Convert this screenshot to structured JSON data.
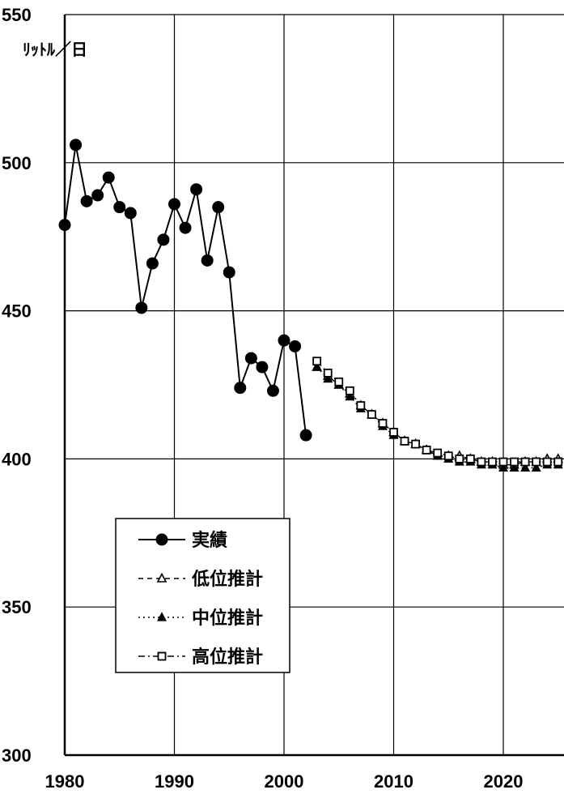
{
  "chart_data": {
    "type": "line",
    "title": "",
    "xlabel": "",
    "ylabel": "",
    "unit_label": "ﾘｯﾄﾙ／日",
    "xlim": [
      1980,
      2025
    ],
    "ylim": [
      300,
      550
    ],
    "x_ticks": [
      1980,
      1990,
      2000,
      2010,
      2020
    ],
    "y_ticks": [
      300,
      350,
      400,
      450,
      500,
      550
    ],
    "grid": true,
    "legend_position": "lower-left",
    "series": [
      {
        "name": "実績",
        "marker": "filled-circle",
        "line": "solid",
        "x": [
          1980,
          1981,
          1982,
          1983,
          1984,
          1985,
          1986,
          1987,
          1988,
          1989,
          1990,
          1991,
          1992,
          1993,
          1994,
          1995,
          1996,
          1997,
          1998,
          1999,
          2000,
          2001,
          2002
        ],
        "values": [
          479,
          506,
          487,
          489,
          495,
          485,
          483,
          451,
          466,
          474,
          486,
          478,
          491,
          467,
          485,
          463,
          424,
          434,
          431,
          423,
          440,
          438,
          408
        ]
      },
      {
        "name": "低位推計",
        "marker": "open-triangle",
        "line": "dashed",
        "x": [
          2003,
          2004,
          2005,
          2006,
          2007,
          2008,
          2009,
          2010,
          2011,
          2012,
          2013,
          2014,
          2015,
          2016,
          2017,
          2018,
          2019,
          2020,
          2021,
          2022,
          2023,
          2024,
          2025
        ],
        "values": [
          431,
          428,
          425,
          422,
          418,
          415,
          412,
          409,
          406,
          405,
          403,
          401,
          401,
          401,
          400,
          399,
          399,
          398,
          398,
          399,
          399,
          400,
          400
        ]
      },
      {
        "name": "中位推計",
        "marker": "filled-triangle",
        "line": "dotted",
        "x": [
          2003,
          2004,
          2005,
          2006,
          2007,
          2008,
          2009,
          2010,
          2011,
          2012,
          2013,
          2014,
          2015,
          2016,
          2017,
          2018,
          2019,
          2020,
          2021,
          2022,
          2023,
          2024,
          2025
        ],
        "values": [
          431,
          427,
          425,
          421,
          417,
          415,
          411,
          408,
          406,
          405,
          403,
          401,
          400,
          399,
          399,
          398,
          398,
          397,
          397,
          397,
          397,
          398,
          398
        ]
      },
      {
        "name": "高位推計",
        "marker": "open-square",
        "line": "dash-dot",
        "x": [
          2003,
          2004,
          2005,
          2006,
          2007,
          2008,
          2009,
          2010,
          2011,
          2012,
          2013,
          2014,
          2015,
          2016,
          2017,
          2018,
          2019,
          2020,
          2021,
          2022,
          2023,
          2024,
          2025
        ],
        "values": [
          433,
          429,
          426,
          423,
          418,
          415,
          412,
          409,
          406,
          405,
          403,
          402,
          401,
          400,
          400,
          399,
          399,
          399,
          399,
          399,
          399,
          399,
          399
        ]
      }
    ]
  }
}
